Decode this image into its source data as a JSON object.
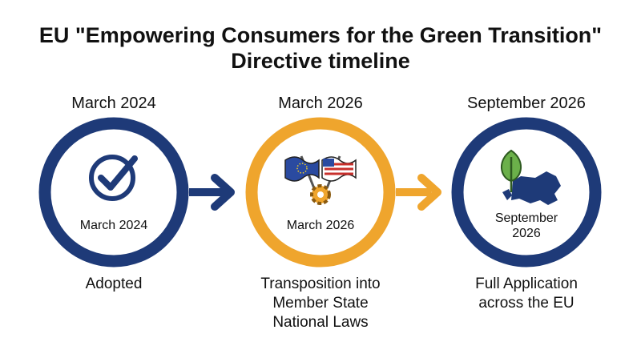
{
  "title_lines": [
    "EU \"Empowering Consumers for the Green Transition\"",
    "Directive timeline"
  ],
  "steps": [
    {
      "date": "March 2024",
      "inner_date_lines": [
        "March 2024"
      ],
      "description_lines": [
        "Adopted"
      ]
    },
    {
      "date": "March 2026",
      "inner_date_lines": [
        "March 2026"
      ],
      "description_lines": [
        "Transposition into",
        "Member State",
        "National Laws"
      ]
    },
    {
      "date": "September 2026",
      "inner_date_lines": [
        "September",
        "2026"
      ],
      "description_lines": [
        "Full Application",
        "across the EU"
      ]
    }
  ]
}
